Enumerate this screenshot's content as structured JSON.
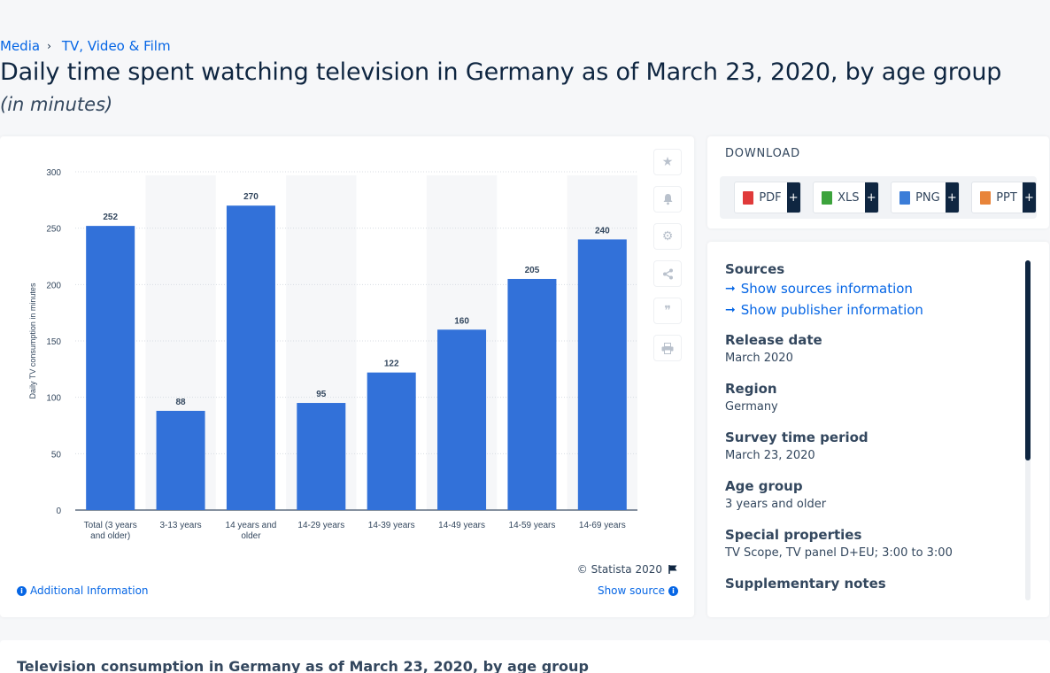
{
  "breadcrumb": {
    "items": [
      "Media",
      "TV, Video & Film"
    ],
    "separator": "›"
  },
  "page": {
    "title": "Daily time spent watching television in Germany as of March 23, 2020, by age group",
    "subtitle": "(in minutes)"
  },
  "chart_data": {
    "type": "bar",
    "categories": [
      "Total (3 years and older)",
      "3-13 years",
      "14 years and older",
      "14-29 years",
      "14-39 years",
      "14-49 years",
      "14-59 years",
      "14-69 years"
    ],
    "category_lines": [
      [
        "Total (3 years",
        "and older)"
      ],
      [
        "3-13 years"
      ],
      [
        "14 years and",
        "older"
      ],
      [
        "14-29 years"
      ],
      [
        "14-39 years"
      ],
      [
        "14-49 years"
      ],
      [
        "14-59 years"
      ],
      [
        "14-69 years"
      ]
    ],
    "values": [
      252,
      88,
      270,
      95,
      122,
      160,
      205,
      240
    ],
    "ylabel": "Daily TV consumption in minutes",
    "xlabel": "",
    "ylim": [
      0,
      300
    ],
    "yticks": [
      0,
      50,
      100,
      150,
      200,
      250,
      300
    ],
    "grid": true,
    "data_labels": true,
    "bar_color": "#3271d9",
    "stripe_color": "#f6f7f9"
  },
  "chart_footer": {
    "copyright": "© Statista 2020",
    "additional_info": "Additional Information",
    "show_source": "Show source"
  },
  "tools": [
    "star-icon",
    "bell-icon",
    "gear-icon",
    "share-icon",
    "quote-icon",
    "print-icon"
  ],
  "download": {
    "title": "DOWNLOAD",
    "buttons": [
      {
        "label": "PDF",
        "color": "#e03a3a"
      },
      {
        "label": "XLS",
        "color": "#3ca33c"
      },
      {
        "label": "PNG",
        "color": "#3b7dd8"
      },
      {
        "label": "PPT",
        "color": "#e8843a"
      }
    ],
    "plus": "+"
  },
  "meta": {
    "sources_heading": "Sources",
    "show_sources": "Show sources information",
    "show_publisher": "Show publisher information",
    "fields": [
      {
        "label": "Release date",
        "value": "March 2020"
      },
      {
        "label": "Region",
        "value": "Germany"
      },
      {
        "label": "Survey time period",
        "value": "March 23, 2020"
      },
      {
        "label": "Age group",
        "value": "3 years and older"
      },
      {
        "label": "Special properties",
        "value": "TV Scope, TV panel D+EU; 3:00 to 3:00"
      },
      {
        "label": "Supplementary notes",
        "value": ""
      }
    ]
  },
  "bottom": {
    "title": "Television consumption in Germany as of March 23, 2020, by age group"
  }
}
